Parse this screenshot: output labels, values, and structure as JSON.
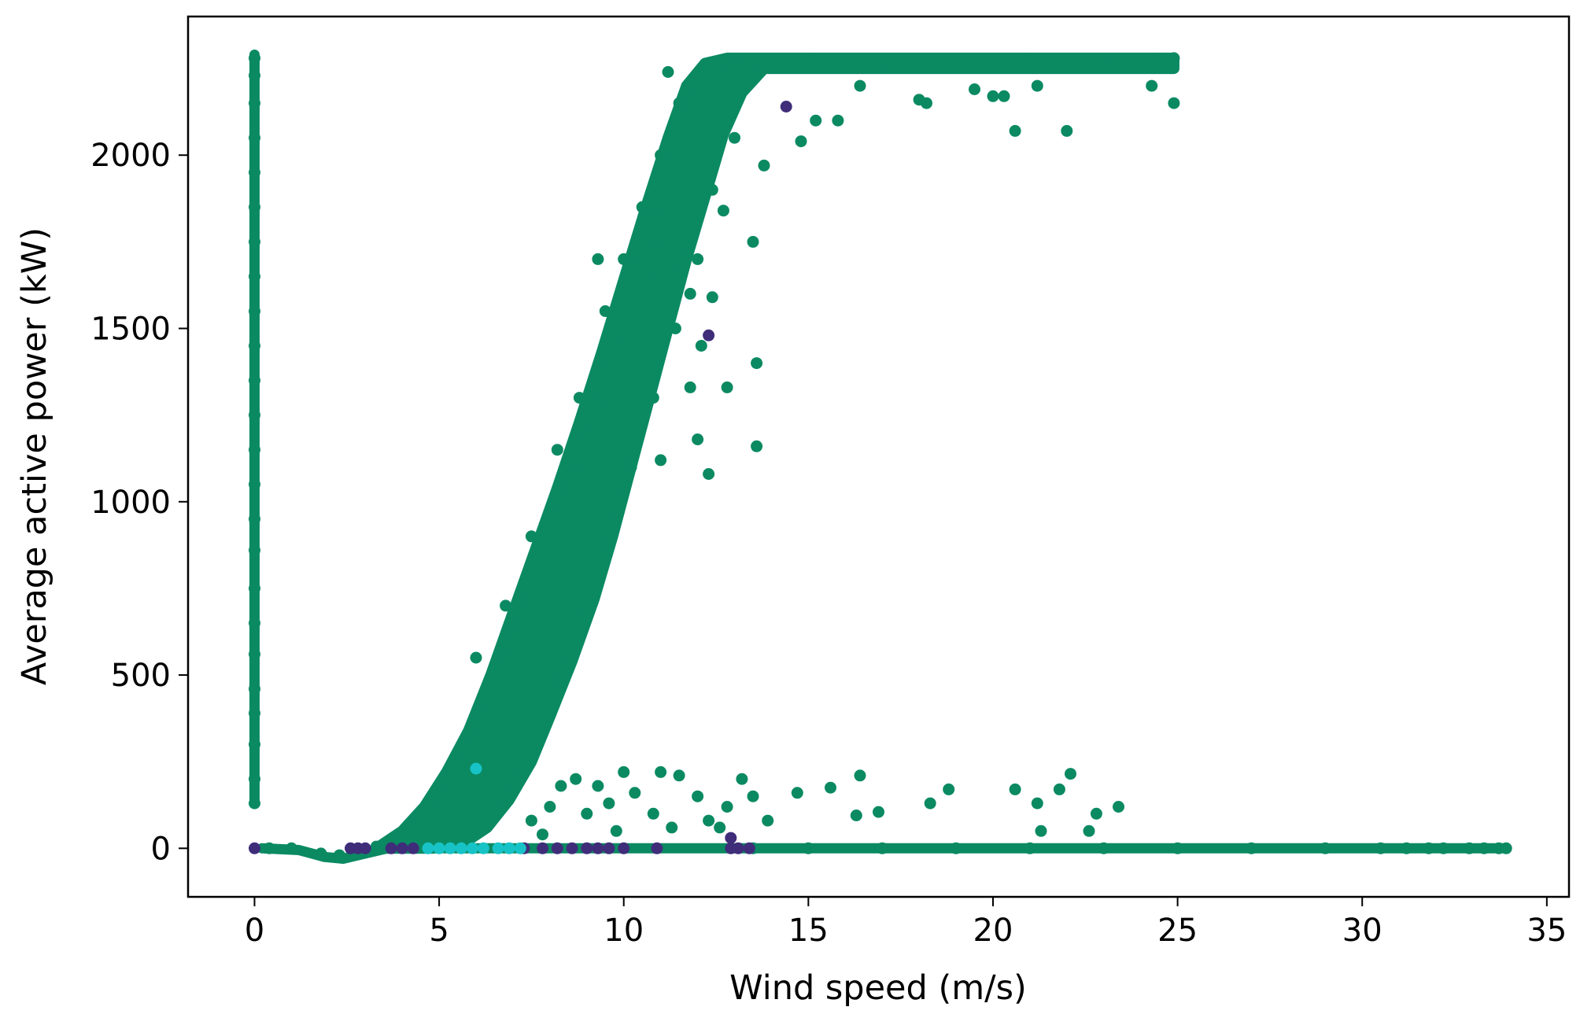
{
  "chart_data": {
    "type": "scatter",
    "title": "",
    "xlabel": "Wind speed (m/s)",
    "ylabel": "Average active power (kW)",
    "xlim": [
      -1.8,
      35.6
    ],
    "ylim": [
      -140,
      2400
    ],
    "xticks": [
      0,
      5,
      10,
      15,
      20,
      25,
      30,
      35
    ],
    "xtick_labels": [
      "0",
      "5",
      "10",
      "15",
      "20",
      "25",
      "30",
      "35"
    ],
    "yticks": [
      0,
      500,
      1000,
      1500,
      2000
    ],
    "ytick_labels": [
      "0",
      "500",
      "1000",
      "1500",
      "2000"
    ],
    "grid": false,
    "legend": "none",
    "series": [
      {
        "color": "#0b8a62",
        "points": [
          [
            0.0,
            130
          ],
          [
            0.0,
            200
          ],
          [
            0.0,
            300
          ],
          [
            0.0,
            390
          ],
          [
            0.0,
            460
          ],
          [
            0.0,
            560
          ],
          [
            0.0,
            650
          ],
          [
            0.0,
            750
          ],
          [
            0.0,
            860
          ],
          [
            0.0,
            950
          ],
          [
            0.0,
            1050
          ],
          [
            0.0,
            1150
          ],
          [
            0.0,
            1250
          ],
          [
            0.0,
            1350
          ],
          [
            0.0,
            1450
          ],
          [
            0.0,
            1550
          ],
          [
            0.0,
            1650
          ],
          [
            0.0,
            1750
          ],
          [
            0.0,
            1850
          ],
          [
            0.0,
            1950
          ],
          [
            0.0,
            2050
          ],
          [
            0.0,
            2150
          ],
          [
            0.0,
            2230
          ],
          [
            0.0,
            2280
          ],
          [
            0.4,
            0
          ],
          [
            1.0,
            0
          ],
          [
            1.8,
            -15
          ],
          [
            2.3,
            -20
          ],
          [
            2.8,
            -10
          ],
          [
            3.3,
            5
          ],
          [
            3.7,
            20
          ],
          [
            4.0,
            40
          ],
          [
            4.4,
            80
          ],
          [
            4.8,
            130
          ],
          [
            5.2,
            200
          ],
          [
            5.5,
            260
          ],
          [
            5.8,
            330
          ],
          [
            6.1,
            400
          ],
          [
            6.4,
            480
          ],
          [
            6.7,
            560
          ],
          [
            7.0,
            640
          ],
          [
            7.3,
            720
          ],
          [
            7.6,
            800
          ],
          [
            7.9,
            880
          ],
          [
            8.2,
            960
          ],
          [
            8.5,
            1040
          ],
          [
            8.8,
            1120
          ],
          [
            9.1,
            1200
          ],
          [
            9.4,
            1290
          ],
          [
            9.7,
            1380
          ],
          [
            10.0,
            1470
          ],
          [
            10.3,
            1560
          ],
          [
            10.6,
            1650
          ],
          [
            10.9,
            1740
          ],
          [
            11.1,
            1830
          ],
          [
            11.4,
            1920
          ],
          [
            11.7,
            2010
          ],
          [
            12.0,
            2100
          ],
          [
            12.4,
            2180
          ],
          [
            12.8,
            2240
          ],
          [
            13.5,
            2270
          ],
          [
            15.0,
            2275
          ],
          [
            17.0,
            2270
          ],
          [
            19.0,
            2270
          ],
          [
            21.0,
            2275
          ],
          [
            23.0,
            2270
          ],
          [
            24.5,
            2275
          ],
          [
            24.9,
            2280
          ],
          [
            6.0,
            550
          ],
          [
            6.8,
            700
          ],
          [
            7.5,
            900
          ],
          [
            8.2,
            1150
          ],
          [
            8.8,
            1300
          ],
          [
            9.5,
            1550
          ],
          [
            10.0,
            1700
          ],
          [
            10.5,
            1850
          ],
          [
            11.0,
            2000
          ],
          [
            11.5,
            2150
          ],
          [
            8.0,
            500
          ],
          [
            8.8,
            700
          ],
          [
            9.5,
            900
          ],
          [
            10.2,
            1100
          ],
          [
            10.8,
            1300
          ],
          [
            11.4,
            1500
          ],
          [
            12.0,
            1700
          ],
          [
            12.4,
            1900
          ],
          [
            13.0,
            2050
          ],
          [
            9.3,
            1700
          ],
          [
            11.8,
            1600
          ],
          [
            12.1,
            1450
          ],
          [
            12.3,
            1080
          ],
          [
            12.0,
            1180
          ],
          [
            11.8,
            1330
          ],
          [
            12.8,
            1330
          ],
          [
            13.5,
            1750
          ],
          [
            13.6,
            1400
          ],
          [
            13.6,
            1160
          ],
          [
            12.4,
            1590
          ],
          [
            11.0,
            1120
          ],
          [
            12.7,
            1840
          ],
          [
            13.8,
            1970
          ],
          [
            14.8,
            2040
          ],
          [
            15.2,
            2100
          ],
          [
            15.8,
            2100
          ],
          [
            16.4,
            2200
          ],
          [
            18.0,
            2160
          ],
          [
            18.2,
            2150
          ],
          [
            19.5,
            2190
          ],
          [
            20.0,
            2170
          ],
          [
            20.3,
            2170
          ],
          [
            20.6,
            2070
          ],
          [
            21.2,
            2200
          ],
          [
            22.0,
            2070
          ],
          [
            24.3,
            2200
          ],
          [
            24.9,
            2150
          ],
          [
            11.2,
            2240
          ],
          [
            6.5,
            150
          ],
          [
            7.0,
            220
          ],
          [
            7.5,
            80
          ],
          [
            8.0,
            120
          ],
          [
            8.3,
            180
          ],
          [
            8.7,
            200
          ],
          [
            9.0,
            100
          ],
          [
            9.3,
            180
          ],
          [
            9.6,
            130
          ],
          [
            10.0,
            220
          ],
          [
            10.3,
            160
          ],
          [
            10.8,
            100
          ],
          [
            11.0,
            220
          ],
          [
            11.5,
            210
          ],
          [
            12.0,
            150
          ],
          [
            12.3,
            80
          ],
          [
            12.8,
            120
          ],
          [
            13.2,
            200
          ],
          [
            13.5,
            150
          ],
          [
            13.9,
            80
          ],
          [
            14.7,
            160
          ],
          [
            15.6,
            175
          ],
          [
            16.3,
            95
          ],
          [
            16.4,
            210
          ],
          [
            16.9,
            105
          ],
          [
            18.3,
            130
          ],
          [
            18.8,
            170
          ],
          [
            20.6,
            170
          ],
          [
            21.2,
            130
          ],
          [
            21.3,
            50
          ],
          [
            21.8,
            170
          ],
          [
            22.1,
            215
          ],
          [
            22.6,
            50
          ],
          [
            22.8,
            100
          ],
          [
            23.4,
            120
          ],
          [
            9.8,
            50
          ],
          [
            11.3,
            60
          ],
          [
            12.6,
            60
          ],
          [
            7.8,
            40
          ],
          [
            13.5,
            0
          ],
          [
            15.0,
            0
          ],
          [
            17.0,
            0
          ],
          [
            19.0,
            0
          ],
          [
            21.0,
            0
          ],
          [
            23.0,
            0
          ],
          [
            25.0,
            0
          ],
          [
            27.0,
            0
          ],
          [
            29.0,
            0
          ],
          [
            30.5,
            0
          ],
          [
            31.2,
            0
          ],
          [
            31.8,
            0
          ],
          [
            32.2,
            0
          ],
          [
            32.9,
            0
          ],
          [
            33.3,
            0
          ],
          [
            33.7,
            0
          ],
          [
            33.9,
            0
          ]
        ]
      },
      {
        "color": "#3f2d7a",
        "points": [
          [
            0.0,
            0
          ],
          [
            2.6,
            0
          ],
          [
            2.8,
            0
          ],
          [
            3.0,
            0
          ],
          [
            3.7,
            0
          ],
          [
            4.0,
            0
          ],
          [
            4.3,
            0
          ],
          [
            7.3,
            0
          ],
          [
            7.8,
            0
          ],
          [
            8.2,
            0
          ],
          [
            8.6,
            0
          ],
          [
            9.0,
            0
          ],
          [
            9.3,
            0
          ],
          [
            9.6,
            0
          ],
          [
            10.0,
            0
          ],
          [
            10.9,
            0
          ],
          [
            12.9,
            0
          ],
          [
            13.1,
            0
          ],
          [
            13.4,
            0
          ],
          [
            12.9,
            30
          ],
          [
            14.4,
            2140
          ],
          [
            12.3,
            1480
          ]
        ]
      },
      {
        "color": "#17c3c6",
        "points": [
          [
            4.7,
            0
          ],
          [
            5.0,
            0
          ],
          [
            5.3,
            0
          ],
          [
            5.6,
            0
          ],
          [
            5.9,
            0
          ],
          [
            6.2,
            0
          ],
          [
            6.6,
            0
          ],
          [
            6.9,
            0
          ],
          [
            7.2,
            0
          ],
          [
            6.0,
            230
          ]
        ]
      }
    ]
  }
}
